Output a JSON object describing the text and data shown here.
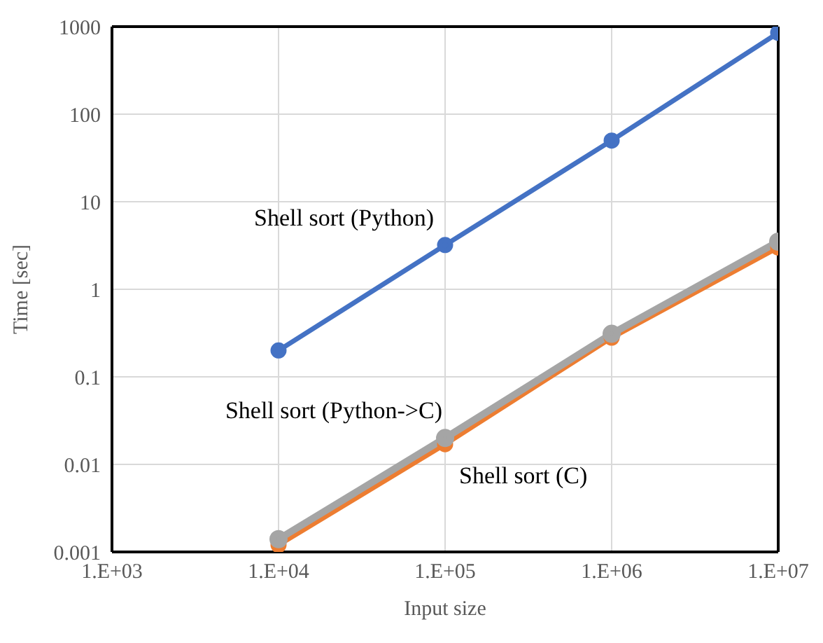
{
  "chart_data": {
    "type": "line",
    "xlabel": "Input size",
    "ylabel": "Time [sec]",
    "log": "y",
    "grid": true,
    "legend": false,
    "marker": "circle",
    "line_style": "solid",
    "categories": [
      "1.E+03",
      "1.E+04",
      "1.E+05",
      "1.E+06",
      "1.E+07"
    ],
    "ylim": [
      0.001,
      1000
    ],
    "yticks": [
      0.001,
      0.01,
      0.1,
      1,
      10,
      100,
      1000
    ],
    "series": [
      {
        "name": "Shell sort (Python)",
        "color": "#4472c4",
        "values": [
          null,
          0.2,
          3.2,
          50,
          850
        ]
      },
      {
        "name": "Shell sort (C)",
        "color": "#ed7d31",
        "values": [
          null,
          0.0012,
          0.017,
          0.28,
          3.0
        ]
      },
      {
        "name": "Shell sort (Python->C)",
        "color": "#a5a5a5",
        "values": [
          null,
          0.0014,
          0.02,
          0.31,
          3.5
        ]
      }
    ]
  }
}
